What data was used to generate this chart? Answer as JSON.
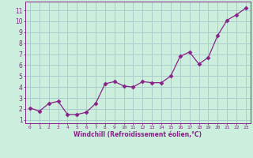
{
  "x": [
    0,
    1,
    2,
    3,
    4,
    5,
    6,
    7,
    8,
    9,
    10,
    11,
    12,
    13,
    14,
    15,
    16,
    17,
    18,
    19,
    20,
    21,
    22,
    23
  ],
  "y": [
    2.1,
    1.8,
    2.5,
    2.7,
    1.5,
    1.5,
    1.7,
    2.5,
    4.3,
    4.5,
    4.1,
    4.0,
    4.5,
    4.4,
    4.4,
    5.0,
    6.8,
    7.2,
    6.1,
    6.7,
    8.7,
    10.1,
    10.6,
    11.2
  ],
  "line_color": "#882288",
  "marker": "D",
  "marker_size": 2.5,
  "bg_color": "#cceedd",
  "grid_color": "#aacccc",
  "xlabel": "Windchill (Refroidissement éolien,°C)",
  "ylabel_ticks": [
    1,
    2,
    3,
    4,
    5,
    6,
    7,
    8,
    9,
    10,
    11
  ],
  "xlim": [
    -0.5,
    23.5
  ],
  "ylim": [
    0.7,
    11.8
  ],
  "xticks": [
    0,
    1,
    2,
    3,
    4,
    5,
    6,
    7,
    8,
    9,
    10,
    11,
    12,
    13,
    14,
    15,
    16,
    17,
    18,
    19,
    20,
    21,
    22,
    23
  ]
}
